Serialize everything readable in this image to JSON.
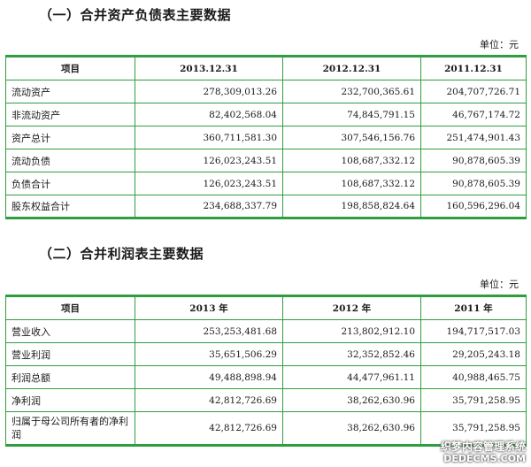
{
  "balance_sheet": {
    "title": "（一）合并资产负债表主要数据",
    "unit": "单位：元",
    "headers": [
      "项目",
      "2013.12.31",
      "2012.12.31",
      "2011.12.31"
    ],
    "rows": [
      {
        "label": "流动资产",
        "values": [
          "278,309,013.26",
          "232,700,365.61",
          "204,707,726.71"
        ]
      },
      {
        "label": "非流动资产",
        "values": [
          "82,402,568.04",
          "74,845,791.15",
          "46,767,174.72"
        ]
      },
      {
        "label": "资产总计",
        "values": [
          "360,711,581.30",
          "307,546,156.76",
          "251,474,901.43"
        ]
      },
      {
        "label": "流动负债",
        "values": [
          "126,023,243.51",
          "108,687,332.12",
          "90,878,605.39"
        ]
      },
      {
        "label": "负债合计",
        "values": [
          "126,023,243.51",
          "108,687,332.12",
          "90,878,605.39"
        ]
      },
      {
        "label": "股东权益合计",
        "values": [
          "234,688,337.79",
          "198,858,824.64",
          "160,596,296.04"
        ]
      }
    ]
  },
  "income_statement": {
    "title": "（二）合并利润表主要数据",
    "unit": "单位：元",
    "headers": [
      "项目",
      "2013 年",
      "2012 年",
      "2011 年"
    ],
    "rows": [
      {
        "label": "营业收入",
        "values": [
          "253,253,481.68",
          "213,802,912.10",
          "194,717,517.03"
        ]
      },
      {
        "label": "营业利润",
        "values": [
          "35,651,506.29",
          "32,352,852.46",
          "29,205,243.18"
        ]
      },
      {
        "label": "利润总额",
        "values": [
          "49,488,898.94",
          "44,477,961.11",
          "40,988,465.75"
        ]
      },
      {
        "label": "净利润",
        "values": [
          "42,812,726.69",
          "38,262,630.96",
          "35,791,258.95"
        ]
      },
      {
        "label": "归属于母公司所有者的净利润",
        "values": [
          "42,812,726.69",
          "38,262,630.96",
          "35,791,258.95"
        ]
      }
    ]
  },
  "watermark": {
    "line1": "织梦内容管理系统",
    "line2": "DEDECMS.COM"
  }
}
